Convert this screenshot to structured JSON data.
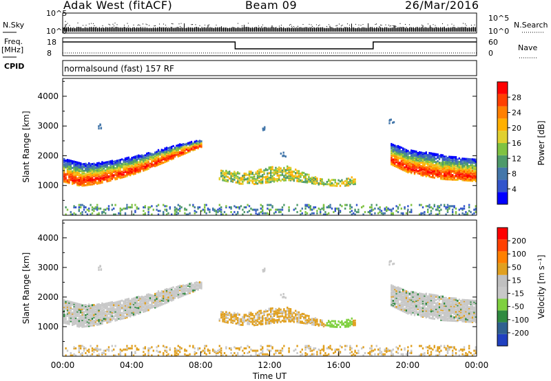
{
  "header": {
    "station": "Adak West (fitACF)",
    "beam": "Beam 09",
    "date": "26/Mar/2016"
  },
  "strip": {
    "nsky_label": "N.Sky",
    "nsearch_label": "N.Search",
    "noise_ticks": [
      "10^5",
      "10^0"
    ],
    "freq_label": "Freq.",
    "freq_unit": "[MHz]",
    "freq_ticks": [
      "18",
      "8"
    ],
    "nave_label": "Nave",
    "nave_ticks": [
      "60",
      "0"
    ],
    "cpid_label": "CPID",
    "cpid_text": "normalsound (fast) 157 RF"
  },
  "colors": {
    "power_scale": [
      "#0000ff",
      "#3355cc",
      "#4477aa",
      "#4e9a6a",
      "#7fc241",
      "#e0d030",
      "#ffb000",
      "#ff8000",
      "#ff4000",
      "#ff0000"
    ],
    "velocity_scale": [
      "#2040c0",
      "#2f6090",
      "#2f8a40",
      "#7fd040",
      "#c8c8c8",
      "#c0c0c0",
      "#e0a020",
      "#ff8000",
      "#ff4000",
      "#ff0000"
    ]
  },
  "chart_data": [
    {
      "type": "heatmap",
      "ylabel": "Slant Range [km]",
      "xlabel": "",
      "xlim": [
        0,
        24
      ],
      "ylim": [
        0,
        4600
      ],
      "x_ticks": [
        "00:00",
        "04:00",
        "08:00",
        "12:00",
        "16:00",
        "20:00",
        "00:00"
      ],
      "y_ticks": [
        1000,
        2000,
        3000,
        4000
      ],
      "colorbar_label": "Power [dB]",
      "colorbar_ticks": [
        "28",
        "24",
        "20",
        "16",
        "12",
        "8",
        "4"
      ],
      "echo_bands": [
        {
          "name": "morning_F",
          "x": [
            0,
            1,
            2,
            3,
            4,
            5,
            6,
            7,
            8
          ],
          "y_center": [
            1550,
            1400,
            1450,
            1560,
            1700,
            1880,
            2080,
            2280,
            2450
          ],
          "half_width": [
            380,
            380,
            350,
            320,
            300,
            270,
            230,
            180,
            120
          ]
        },
        {
          "name": "midday",
          "x": [
            9,
            10,
            11,
            12,
            13,
            14,
            15,
            16,
            17
          ],
          "y_center": [
            1400,
            1300,
            1300,
            1400,
            1450,
            1300,
            1150,
            1120,
            1200
          ],
          "half_width": [
            150,
            200,
            220,
            250,
            230,
            150,
            100,
            100,
            150
          ]
        },
        {
          "name": "evening_F",
          "x": [
            19,
            20,
            21,
            22,
            23,
            24
          ],
          "y_center": [
            2100,
            1850,
            1750,
            1650,
            1600,
            1550
          ],
          "half_width": [
            350,
            380,
            400,
            400,
            380,
            370
          ]
        }
      ]
    },
    {
      "type": "heatmap",
      "ylabel": "Slant Range [km]",
      "xlabel": "Time UT",
      "xlim": [
        0,
        24
      ],
      "ylim": [
        0,
        4600
      ],
      "x_ticks": [
        "00:00",
        "04:00",
        "08:00",
        "12:00",
        "16:00",
        "20:00",
        "00:00"
      ],
      "y_ticks": [
        1000,
        2000,
        3000,
        4000
      ],
      "colorbar_label": "Velocity [m s⁻¹]",
      "colorbar_ticks": [
        "200",
        "100",
        "50",
        "15",
        "-15",
        "-50",
        "-100",
        "-200"
      ]
    },
    {
      "type": "line",
      "name": "frequency",
      "x": [
        0,
        10,
        10,
        18,
        18,
        24
      ],
      "y": [
        15.5,
        15.5,
        10.5,
        10.5,
        15.5,
        15.5
      ],
      "ylim": [
        6,
        18
      ]
    }
  ]
}
